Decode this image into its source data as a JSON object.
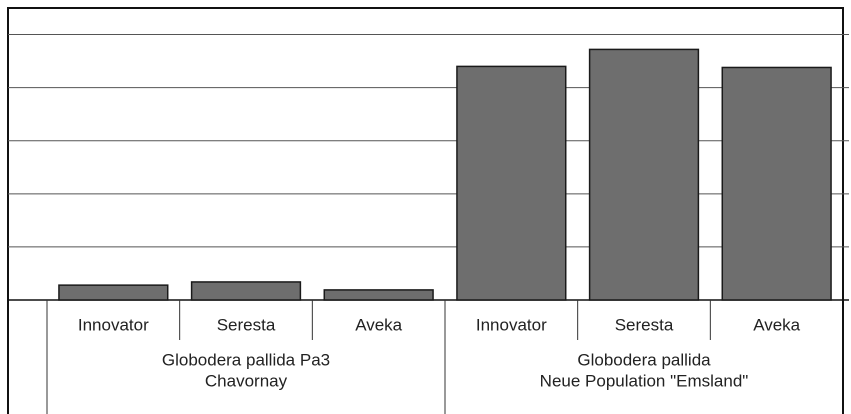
{
  "chart_data": {
    "type": "bar",
    "color": "#6e6e6e",
    "groups": [
      {
        "label": [
          "Globodera pallida Pa3",
          "Chavornay"
        ],
        "categories": [
          "Innovator",
          "Seresta",
          "Aveka"
        ],
        "values": [
          0.28,
          0.34,
          0.19
        ]
      },
      {
        "label": [
          "Globodera pallida",
          "Neue Population \"Emsland\""
        ],
        "categories": [
          "Innovator",
          "Seresta",
          "Aveka"
        ],
        "values": [
          4.4,
          4.72,
          4.38
        ]
      }
    ],
    "ylim": [
      0,
      5.5
    ],
    "yticks": [
      0,
      1,
      2,
      3,
      4,
      5
    ],
    "grid": true
  }
}
